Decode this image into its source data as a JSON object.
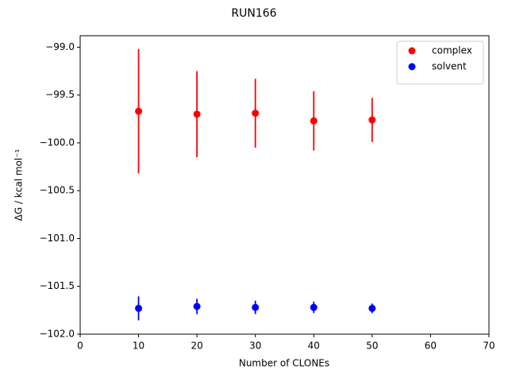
{
  "chart_data": {
    "type": "errorbar-scatter",
    "title": "RUN166",
    "x_label": "Number of CLONEs",
    "y_label": "ΔG / kcal mol⁻¹",
    "series": [
      {
        "name": "complex",
        "color": "#ff0000",
        "x": [
          10,
          20,
          30,
          40,
          50
        ],
        "values": [
          -99.67,
          -99.7,
          -99.69,
          -99.77,
          -99.76
        ],
        "errors": [
          0.65,
          0.45,
          0.36,
          0.31,
          0.23
        ]
      },
      {
        "name": "solvent",
        "color": "#0000ff",
        "x": [
          10,
          20,
          30,
          40,
          50
        ],
        "values": [
          -101.73,
          -101.71,
          -101.72,
          -101.72,
          -101.73
        ],
        "errors": [
          0.125,
          0.08,
          0.07,
          0.06,
          0.05
        ]
      }
    ],
    "xlim": [
      0,
      70
    ],
    "xticks": [
      0,
      10,
      20,
      30,
      40,
      50,
      60,
      70
    ],
    "ylim": [
      -102.0,
      -98.88
    ],
    "yticks": [
      {
        "value": -102.0,
        "label": "−102.0"
      },
      {
        "value": -101.5,
        "label": "−101.5"
      },
      {
        "value": -101.0,
        "label": "−101.0"
      },
      {
        "value": -100.5,
        "label": "−100.5"
      },
      {
        "value": -100.0,
        "label": "−100.0"
      },
      {
        "value": -99.5,
        "label": "−99.5"
      },
      {
        "value": -99.0,
        "label": "−99.0"
      }
    ],
    "legend": "upper right",
    "grid": false
  }
}
